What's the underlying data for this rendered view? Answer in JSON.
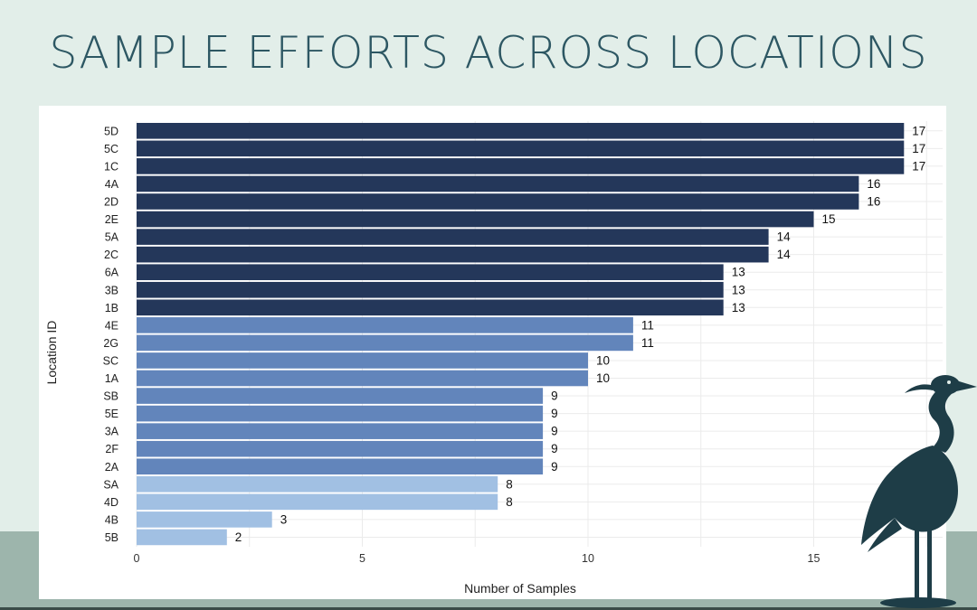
{
  "page": {
    "title": "SAMPLE EFFORTS ACROSS LOCATIONS"
  },
  "colors": {
    "background": "#e2eee9",
    "title": "#2d5763",
    "band": "#9db5ac",
    "dark_bar": "#24375a",
    "mid_bar": "#6285bb",
    "light_bar": "#a1c0e3",
    "heron": "#1e3d47"
  },
  "icons": {
    "decoration": "heron-icon"
  },
  "chart_data": {
    "type": "bar",
    "orientation": "horizontal",
    "categories": [
      "5D",
      "5C",
      "1C",
      "4A",
      "2D",
      "2E",
      "5A",
      "2C",
      "6A",
      "3B",
      "1B",
      "4E",
      "2G",
      "SC",
      "1A",
      "SB",
      "5E",
      "3A",
      "2F",
      "2A",
      "SA",
      "4D",
      "4B",
      "5B"
    ],
    "values": [
      17,
      17,
      17,
      16,
      16,
      15,
      14,
      14,
      13,
      13,
      13,
      11,
      11,
      10,
      10,
      9,
      9,
      9,
      9,
      9,
      8,
      8,
      3,
      2
    ],
    "xlabel": "Number of Samples",
    "ylabel": "Location ID",
    "xlim": [
      0,
      17.6
    ],
    "xticks": [
      0,
      5,
      10,
      15
    ],
    "grid": true,
    "legend": "none",
    "data_labels": true
  }
}
